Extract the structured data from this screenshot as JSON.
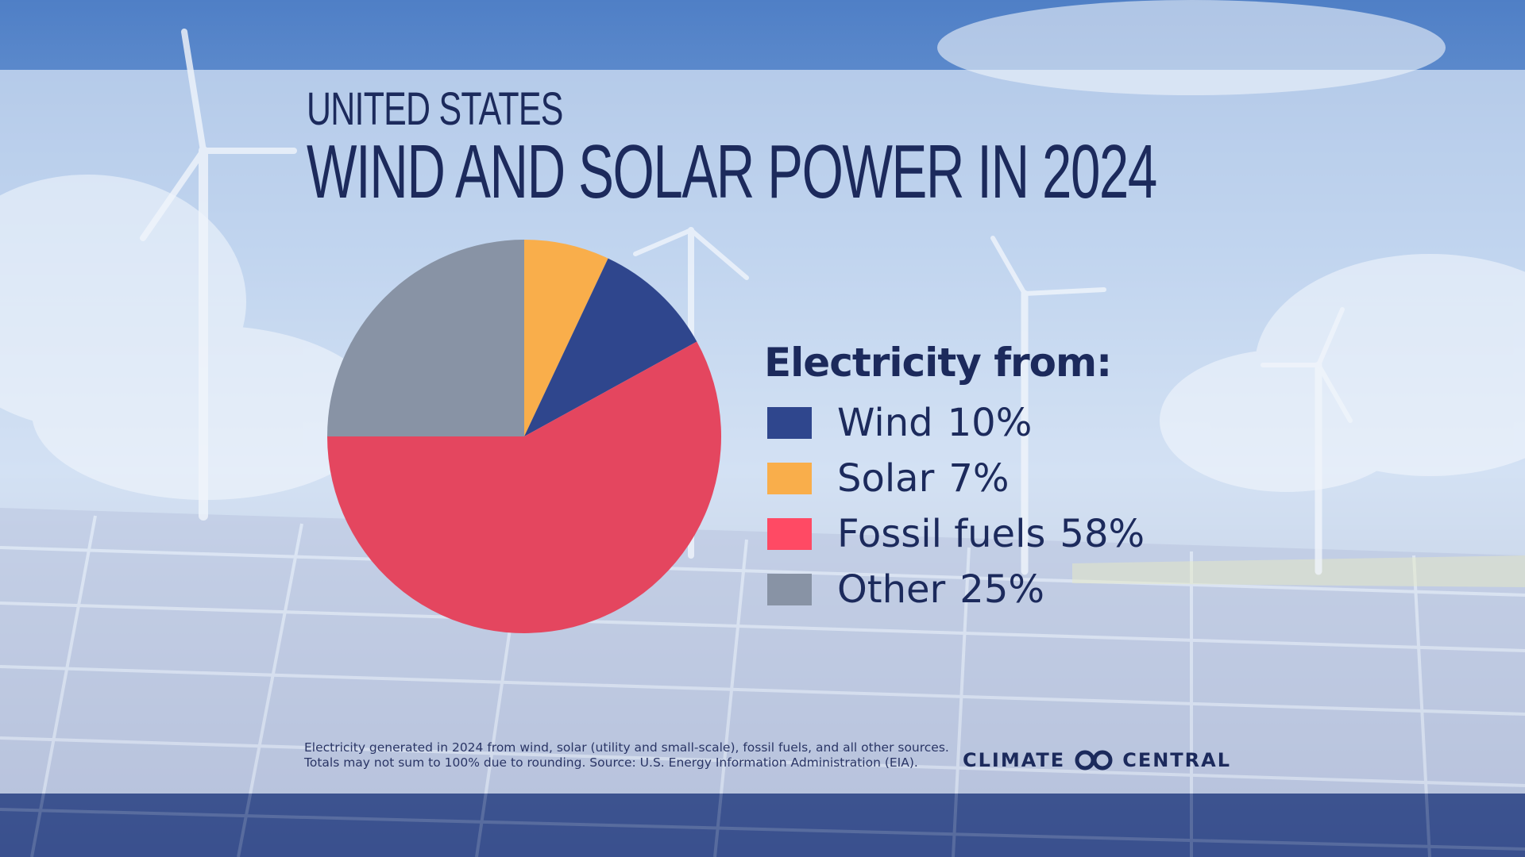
{
  "header": {
    "title_small": "UNITED STATES",
    "title_big": "WIND AND SOLAR POWER IN 2024"
  },
  "legend": {
    "title": "Electricity from:"
  },
  "chart_data": {
    "type": "pie",
    "title": "WIND AND SOLAR POWER IN 2024",
    "subtitle": "UNITED STATES",
    "legend_title": "Electricity from:",
    "legend_position": "right",
    "slices": [
      {
        "label": "Solar",
        "value": 7,
        "display": "7%",
        "color": "#f9ae4b"
      },
      {
        "label": "Wind",
        "value": 10,
        "display": "10%",
        "color": "#2f468d"
      },
      {
        "label": "Fossil fuels",
        "value": 58,
        "display": "58%",
        "color": "#e4465f"
      },
      {
        "label": "Other",
        "value": 25,
        "display": "25%",
        "color": "#8893a5"
      }
    ],
    "legend_items": [
      {
        "label": "Wind",
        "display": "10%",
        "color": "#2f468d"
      },
      {
        "label": "Solar",
        "display": "7%",
        "color": "#f9ae4b"
      },
      {
        "label": "Fossil fuels",
        "display": "58%",
        "color": "#ff4a64"
      },
      {
        "label": "Other",
        "display": "25%",
        "color": "#8893a5"
      }
    ]
  },
  "footnote": {
    "line1": "Electricity generated in 2024 from wind, solar (utility and small-scale), fossil fuels, and all other sources.",
    "line2": "Totals may not sum to 100% due to rounding. Source: U.S. Energy Information Administration (EIA)."
  },
  "logo": {
    "left": "CLIMATE",
    "right": "CENTRAL"
  },
  "colors": {
    "title": "#1c2a5c",
    "panel": "#eef4fc"
  }
}
